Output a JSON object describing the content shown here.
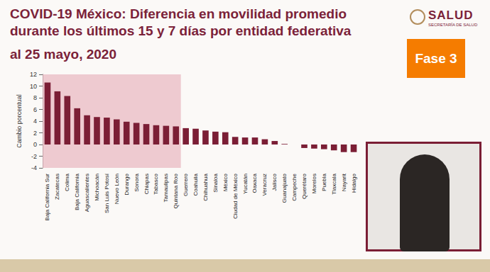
{
  "page": {
    "logo": "SALUD",
    "logo_subtitle": "SECRETARÍA DE SALUD",
    "badge": "Fase 3"
  },
  "chart_data": {
    "type": "bar",
    "title": "COVID-19 México: Diferencia en movilidad promedio durante los últimos 15 y 7 días por entidad federativa",
    "subtitle": "al 25 mayo, 2020",
    "y_label": "Cambio porcentual",
    "categories": [
      "Baja California Sur",
      "Zacatecas",
      "Colima",
      "Baja California",
      "Aguascalientes",
      "Michoacán",
      "San Luis Potosí",
      "Nuevo León",
      "Durango",
      "Sonora",
      "Chiapas",
      "Tabasco",
      "Tamaulipas",
      "Quintana Roo",
      "Guerrero",
      "Coahuila",
      "Chihuahua",
      "Sinaloa",
      "México",
      "Ciudad de México",
      "Yucatán",
      "Oaxaca",
      "Veracruz",
      "Jalisco",
      "Guanajuato",
      "Campeche",
      "Querétaro",
      "Morelos",
      "Puebla",
      "Tlaxcala",
      "Nayarit",
      "Hidalgo"
    ],
    "values": [
      10.6,
      9.1,
      8.3,
      6.2,
      5.0,
      4.7,
      4.6,
      4.3,
      3.9,
      3.7,
      3.5,
      3.3,
      3.2,
      3.1,
      2.8,
      2.7,
      2.4,
      2.2,
      2.1,
      1.3,
      1.2,
      1.2,
      0.9,
      0.6,
      0.1,
      0.0,
      -0.6,
      -0.7,
      -0.8,
      -1.0,
      -1.3,
      -1.3
    ],
    "color": "#7b1e35",
    "highlight": {
      "from": "Baja California Sur",
      "to": "Quintana Roo",
      "color": "#e9b9c3"
    },
    "ylim": [
      -4,
      12
    ],
    "yticks": [
      -4,
      -2,
      0,
      2,
      4,
      6,
      8,
      10,
      12
    ],
    "grid": false
  }
}
